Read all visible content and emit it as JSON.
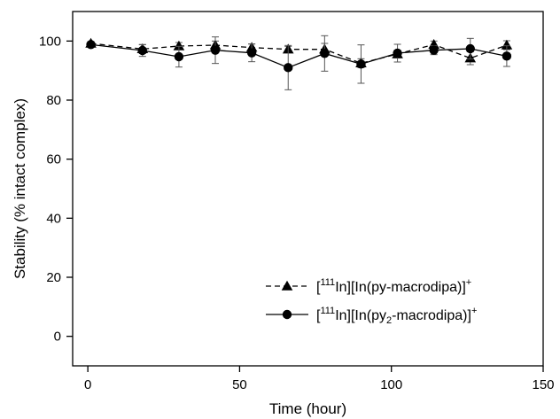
{
  "chart_data": {
    "type": "line",
    "xlabel": "Time (hour)",
    "ylabel": "Stability (% intact complex)",
    "xlim": [
      -5,
      150
    ],
    "ylim": [
      -10,
      110
    ],
    "xticks": [
      0,
      50,
      100,
      150
    ],
    "yticks": [
      0,
      20,
      40,
      60,
      80,
      100
    ],
    "xtick_labels": [
      "0",
      "50",
      "100",
      "150"
    ],
    "ytick_labels": [
      "0",
      "20",
      "40",
      "60",
      "80",
      "100"
    ],
    "grid": false,
    "legend_position": "bottom-right",
    "series": [
      {
        "name": "[111In][In(py-macrodipa)]+",
        "legend_parts": {
          "open": "[",
          "sup1": "111",
          "mid": "In][In(py-macrodipa)]",
          "sub": "",
          "end": "",
          "sup2": "+"
        },
        "marker": "triangle",
        "line_style": "dashed",
        "color": "#000000",
        "x": [
          1,
          18,
          30,
          42,
          54,
          66,
          78,
          90,
          102,
          114,
          126,
          138
        ],
        "y": [
          99.2,
          97.3,
          98.3,
          98.6,
          97.8,
          97.2,
          97.2,
          92.5,
          95.6,
          98.8,
          94.2,
          98.6
        ],
        "err": [
          0.5,
          1.5,
          1.2,
          1.4,
          1.2,
          1.0,
          2.0,
          1.5,
          1.3,
          1.2,
          2.2,
          1.5
        ]
      },
      {
        "name": "[111In][In(py2-macrodipa)]+",
        "legend_parts": {
          "open": "[",
          "sup1": "111",
          "mid": "In][In(py",
          "sub": "2",
          "end": "-macrodipa)]",
          "sup2": "+"
        },
        "marker": "circle",
        "line_style": "solid",
        "color": "#000000",
        "x": [
          1,
          18,
          30,
          42,
          54,
          66,
          78,
          90,
          102,
          114,
          126,
          138
        ],
        "y": [
          98.8,
          96.8,
          94.7,
          96.9,
          96.0,
          91.0,
          95.8,
          92.2,
          95.9,
          96.9,
          97.4,
          94.9
        ],
        "err": [
          0.5,
          2.0,
          3.5,
          4.5,
          3.0,
          7.5,
          6.0,
          6.5,
          3.0,
          1.5,
          3.5,
          3.5
        ]
      }
    ]
  }
}
